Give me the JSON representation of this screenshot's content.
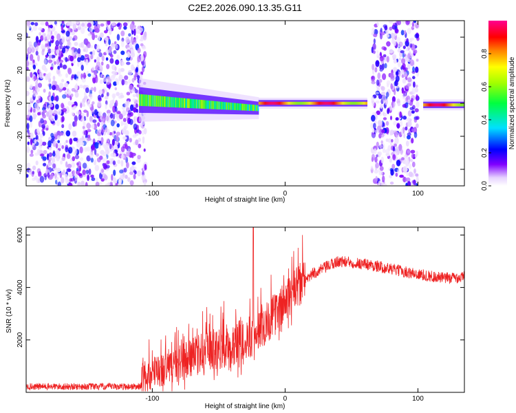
{
  "title": "C2E2.2026.090.13.35.G11",
  "chart_data": [
    {
      "type": "heatmap",
      "name": "spectrogram",
      "xlabel": "Height of straight line (km)",
      "ylabel": "Frequency (Hz)",
      "xlim": [
        -195,
        135
      ],
      "ylim": [
        -50,
        50
      ],
      "x_ticks": [
        -100,
        0,
        100
      ],
      "x_tick_labels": [
        "-100",
        "0",
        "100"
      ],
      "y_ticks": [
        -40,
        -20,
        0,
        20,
        40
      ],
      "y_tick_labels": [
        "-40",
        "-20",
        "0",
        "20",
        "40"
      ],
      "regions": [
        {
          "kind": "noise",
          "x": [
            -195,
            -105
          ]
        },
        {
          "kind": "signal_broad",
          "x": [
            -110,
            -20
          ],
          "y_center": [
            2,
            -3
          ],
          "y_halfwidth": [
            6,
            3
          ]
        },
        {
          "kind": "signal_narrow",
          "x": [
            -20,
            62
          ],
          "y_center": [
            0,
            0
          ],
          "y_halfwidth": [
            1.5,
            1.5
          ]
        },
        {
          "kind": "noise",
          "x": [
            65,
            100
          ]
        },
        {
          "kind": "signal_narrow",
          "x": [
            104,
            135
          ],
          "y_center": [
            -1,
            -1
          ],
          "y_halfwidth": [
            1.5,
            1.5
          ]
        }
      ]
    },
    {
      "type": "colorbar",
      "name": "colorbar",
      "label": "Normalized spectral amplitude",
      "range": [
        0,
        1
      ],
      "ticks": [
        0.0,
        0.2,
        0.4,
        0.6,
        0.8
      ],
      "tick_labels": [
        "0.0",
        "0.2",
        "0.4",
        "0.6",
        "0.8"
      ],
      "colors": [
        "#ffffff",
        "#e0c8ff",
        "#8000ff",
        "#0000ff",
        "#00ffff",
        "#00ff00",
        "#ffff00",
        "#ff8000",
        "#ff0000",
        "#ff0080"
      ]
    },
    {
      "type": "line",
      "name": "snr",
      "xlabel": "Height of straight line (km)",
      "ylabel": "SNR (10 * v/v)",
      "xlim": [
        -195,
        135
      ],
      "ylim": [
        0,
        6300
      ],
      "x_ticks": [
        -100,
        0,
        100
      ],
      "x_tick_labels": [
        "-100",
        "0",
        "100"
      ],
      "y_ticks": [
        2000,
        4000,
        6000
      ],
      "y_tick_labels": [
        "2000",
        "4000",
        "6000"
      ],
      "color": "#ee2222",
      "envelope_x": [
        -195,
        -110,
        -100,
        -80,
        -60,
        -40,
        -25,
        -10,
        0,
        20,
        40,
        60,
        80,
        100,
        120,
        135
      ],
      "envelope_y": [
        220,
        220,
        500,
        900,
        1300,
        1600,
        1900,
        2600,
        3200,
        4500,
        5000,
        4900,
        4700,
        4500,
        4350,
        4400
      ]
    }
  ]
}
